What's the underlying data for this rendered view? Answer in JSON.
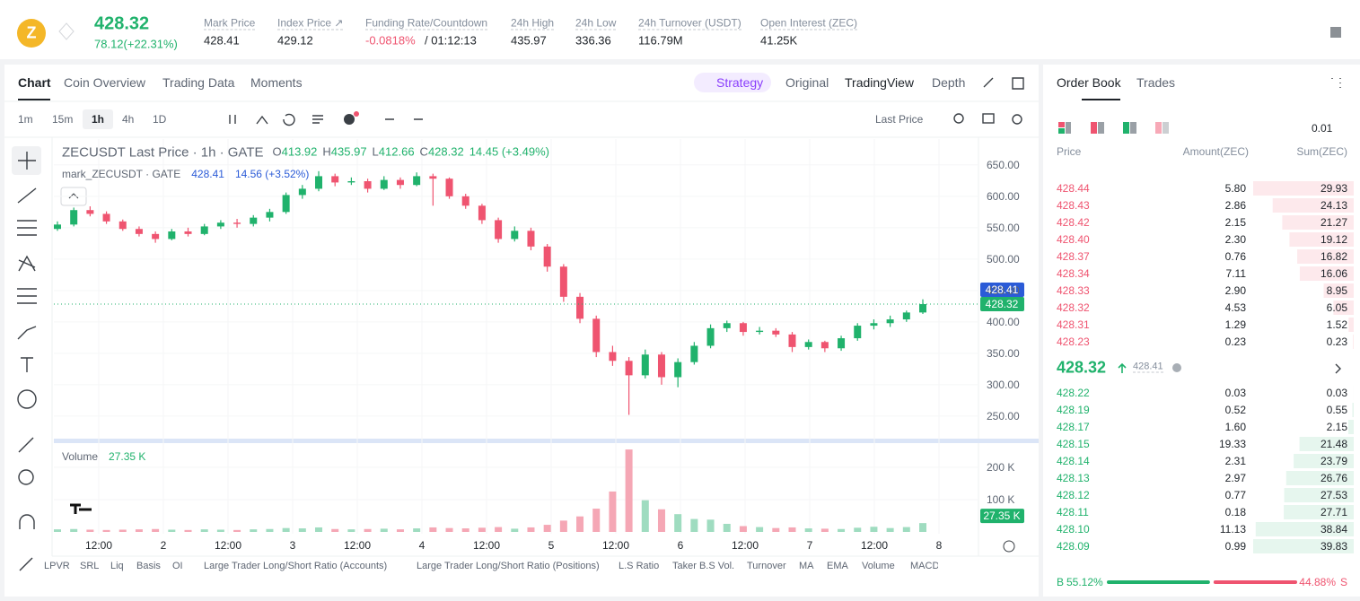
{
  "header": {
    "symbol_icon": "Z",
    "price": "428.32",
    "change": "78.12(+22.31%)",
    "stats": [
      {
        "label": "Mark Price",
        "value": "428.41"
      },
      {
        "label": "Index Price ↗",
        "value": "429.12"
      },
      {
        "label": "Funding Rate/Countdown",
        "value": "-0.0818%",
        "extra": "/ 01:12:13"
      },
      {
        "label": "24h High",
        "value": "435.97"
      },
      {
        "label": "24h Low",
        "value": "336.36"
      },
      {
        "label": "24h Turnover (USDT)",
        "value": "116.79M"
      },
      {
        "label": "Open Interest (ZEC)",
        "value": "41.25K"
      }
    ]
  },
  "tabs": [
    "Chart",
    "Coin Overview",
    "Trading Data",
    "Moments"
  ],
  "view_tabs": [
    "Strategy",
    "Original",
    "TradingView",
    "Depth"
  ],
  "intervals": [
    "1m",
    "15m",
    "1h",
    "4h",
    "1D"
  ],
  "price_type": "Last Price",
  "legend": {
    "symbol": "ZECUSDT Last Price · 1h · GATE",
    "ohlc": [
      {
        "k": "O",
        "v": "413.92"
      },
      {
        "k": "H",
        "v": "435.97"
      },
      {
        "k": "L",
        "v": "412.66"
      },
      {
        "k": "C",
        "v": "428.32"
      }
    ],
    "change": "14.45 (+3.49%)",
    "mark": "mark_ZECUSDT · GATE",
    "mark_value": "428.41",
    "mark_change": "14.56 (+3.52%)",
    "volume": "Volume",
    "volume_value": "27.35 K"
  },
  "chart_data": {
    "type": "candlestick",
    "up_color": "#20b26c",
    "down_color": "#ef5470",
    "x_labels": [
      "12:00",
      "2",
      "12:00",
      "3",
      "12:00",
      "4",
      "12:00",
      "5",
      "12:00",
      "6",
      "12:00",
      "7",
      "12:00",
      "8"
    ],
    "candles": [
      [
        548,
        560,
        545,
        555
      ],
      [
        555,
        582,
        552,
        578
      ],
      [
        578,
        584,
        568,
        572
      ],
      [
        572,
        576,
        556,
        560
      ],
      [
        560,
        563,
        545,
        548
      ],
      [
        548,
        552,
        536,
        540
      ],
      [
        540,
        544,
        526,
        532
      ],
      [
        532,
        548,
        530,
        544
      ],
      [
        544,
        550,
        536,
        540
      ],
      [
        540,
        556,
        538,
        552
      ],
      [
        552,
        562,
        548,
        558
      ],
      [
        558,
        564,
        550,
        556
      ],
      [
        556,
        570,
        552,
        566
      ],
      [
        566,
        580,
        560,
        575
      ],
      [
        575,
        606,
        572,
        602
      ],
      [
        602,
        618,
        596,
        612
      ],
      [
        612,
        640,
        608,
        632
      ],
      [
        632,
        636,
        616,
        622
      ],
      [
        622,
        630,
        618,
        624
      ],
      [
        624,
        628,
        606,
        612
      ],
      [
        612,
        632,
        610,
        626
      ],
      [
        626,
        630,
        612,
        618
      ],
      [
        618,
        638,
        616,
        632
      ],
      [
        632,
        636,
        585,
        628
      ],
      [
        628,
        630,
        596,
        600
      ],
      [
        600,
        604,
        580,
        585
      ],
      [
        585,
        588,
        556,
        562
      ],
      [
        562,
        566,
        526,
        532
      ],
      [
        532,
        552,
        528,
        545
      ],
      [
        545,
        550,
        514,
        520
      ],
      [
        520,
        524,
        480,
        488
      ],
      [
        488,
        492,
        432,
        440
      ],
      [
        440,
        446,
        398,
        405
      ],
      [
        405,
        410,
        344,
        352
      ],
      [
        352,
        362,
        330,
        338
      ],
      [
        338,
        344,
        252,
        315
      ],
      [
        315,
        356,
        310,
        348
      ],
      [
        348,
        352,
        300,
        312
      ],
      [
        312,
        342,
        296,
        336
      ],
      [
        336,
        368,
        332,
        362
      ],
      [
        362,
        396,
        358,
        390
      ],
      [
        390,
        402,
        384,
        398
      ],
      [
        398,
        400,
        378,
        384
      ],
      [
        384,
        392,
        380,
        386
      ],
      [
        386,
        390,
        376,
        380
      ],
      [
        380,
        384,
        352,
        360
      ],
      [
        360,
        372,
        356,
        368
      ],
      [
        368,
        370,
        352,
        358
      ],
      [
        358,
        378,
        354,
        374
      ],
      [
        374,
        398,
        370,
        394
      ],
      [
        394,
        404,
        388,
        398
      ],
      [
        398,
        410,
        392,
        404
      ],
      [
        404,
        418,
        400,
        415
      ],
      [
        415,
        435.97,
        412.66,
        428.32
      ]
    ],
    "volumes": [
      8000,
      9000,
      7000,
      6000,
      7000,
      8000,
      9000,
      7000,
      6000,
      8000,
      7000,
      6000,
      8000,
      9000,
      12000,
      11000,
      14000,
      9000,
      8000,
      9000,
      10000,
      8000,
      11000,
      14000,
      12000,
      11000,
      13000,
      15000,
      10000,
      14000,
      22000,
      35000,
      48000,
      72000,
      125000,
      255000,
      98000,
      70000,
      55000,
      40000,
      38000,
      25000,
      18000,
      15000,
      12000,
      14000,
      11000,
      10000,
      9000,
      13000,
      16000,
      12000,
      15000,
      27350
    ],
    "ylim": [
      227,
      684
    ],
    "yticks": [
      {
        "value": 250,
        "label": "250.00"
      },
      {
        "value": 300,
        "label": "300.00"
      },
      {
        "value": 350,
        "label": "350.00"
      },
      {
        "value": 400,
        "label": "400.00"
      },
      {
        "value": 450,
        "label": "450.00"
      },
      {
        "value": 500,
        "label": "500.00"
      },
      {
        "value": 550,
        "label": "550.00"
      },
      {
        "value": 600,
        "label": "600.00"
      },
      {
        "value": 650,
        "label": "650.00"
      }
    ],
    "vol_ylim": [
      0,
      258000
    ],
    "vol_yticks": [
      {
        "value": 100000,
        "label": "100 K"
      },
      {
        "value": 200000,
        "label": "200 K"
      }
    ],
    "mark_price": {
      "value": 428.41,
      "label": "428.41"
    },
    "last_price": {
      "value": 428.32,
      "label": "428.32"
    },
    "volume_badge": {
      "value": 27350,
      "label": "27.35 K"
    }
  },
  "indicators": [
    "LPVR",
    "SRL",
    "Liq",
    "Basis",
    "OI",
    "Large Trader Long/Short Ratio (Accounts)",
    "Large Trader Long/Short Ratio (Positions)",
    "L.S Ratio",
    "Taker B.S Vol.",
    "Turnover",
    "MA",
    "EMA",
    "Volume",
    "MACD"
  ],
  "order_book": {
    "tabs": [
      "Order Book",
      "Trades"
    ],
    "precision": "0.01",
    "headers": [
      "Price",
      "Amount(ZEC)",
      "Sum(ZEC)"
    ],
    "asks": [
      [
        "428.44",
        "5.80",
        "29.93"
      ],
      [
        "428.43",
        "2.86",
        "24.13"
      ],
      [
        "428.42",
        "2.15",
        "21.27"
      ],
      [
        "428.40",
        "2.30",
        "19.12"
      ],
      [
        "428.37",
        "0.76",
        "16.82"
      ],
      [
        "428.34",
        "7.11",
        "16.06"
      ],
      [
        "428.33",
        "2.90",
        "8.95"
      ],
      [
        "428.32",
        "4.53",
        "6.05"
      ],
      [
        "428.31",
        "1.29",
        "1.52"
      ],
      [
        "428.23",
        "0.23",
        "0.23"
      ]
    ],
    "last": "428.32",
    "mark": "428.41",
    "bids": [
      [
        "428.22",
        "0.03",
        "0.03"
      ],
      [
        "428.19",
        "0.52",
        "0.55"
      ],
      [
        "428.17",
        "1.60",
        "2.15"
      ],
      [
        "428.15",
        "19.33",
        "21.48"
      ],
      [
        "428.14",
        "2.31",
        "23.79"
      ],
      [
        "428.13",
        "2.97",
        "26.76"
      ],
      [
        "428.12",
        "0.77",
        "27.53"
      ],
      [
        "428.11",
        "0.18",
        "27.71"
      ],
      [
        "428.10",
        "11.13",
        "38.84"
      ],
      [
        "428.09",
        "0.99",
        "39.83"
      ]
    ],
    "buy_label": "B",
    "buy": "55.12%",
    "sell": "44.88%",
    "sell_label": "S"
  }
}
